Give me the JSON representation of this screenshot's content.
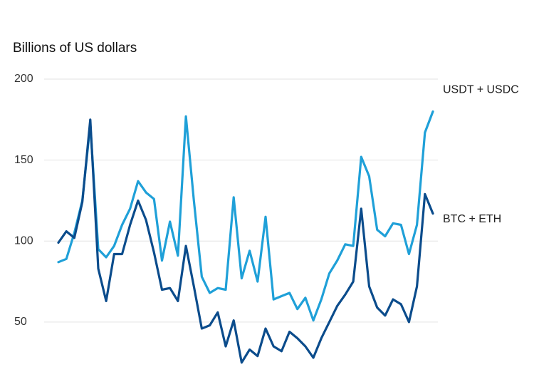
{
  "chart_data": {
    "type": "line",
    "y_axis_label": "Billions of US dollars",
    "categories": [
      null,
      null,
      null,
      null,
      null,
      null,
      null,
      null,
      null,
      null,
      null,
      null,
      null,
      null,
      null,
      null,
      null,
      null,
      null,
      null,
      null,
      null,
      null,
      null,
      null,
      null,
      null,
      null,
      null,
      null,
      null,
      null,
      null,
      null,
      null,
      null,
      null,
      null,
      null,
      null,
      null,
      null,
      null,
      null,
      null,
      null,
      null,
      null
    ],
    "series": [
      {
        "name": "USDT + USDC",
        "color": "#1fa0d8",
        "values": [
          87,
          89,
          105,
          125,
          172,
          95,
          90,
          97,
          110,
          120,
          137,
          130,
          126,
          88,
          112,
          91,
          177,
          125,
          78,
          68,
          71,
          70,
          127,
          77,
          94,
          75,
          115,
          64,
          66,
          68,
          58,
          65,
          51,
          64,
          80,
          88,
          98,
          97,
          152,
          140,
          107,
          103,
          111,
          110,
          92,
          110,
          167,
          180
        ]
      },
      {
        "name": "BTC + ETH",
        "color": "#0b4c8c",
        "values": [
          99,
          106,
          102,
          124,
          175,
          83,
          63,
          92,
          92,
          110,
          125,
          113,
          93,
          70,
          71,
          63,
          97,
          72,
          46,
          48,
          56,
          35,
          51,
          25,
          33,
          29,
          46,
          35,
          32,
          44,
          40,
          35,
          28,
          40,
          50,
          60,
          67,
          75,
          120,
          72,
          59,
          54,
          64,
          61,
          50,
          72,
          129,
          117
        ]
      }
    ],
    "ylim": [
      13,
      200
    ],
    "yticks": [
      50,
      100,
      150,
      200
    ],
    "grid": true
  }
}
